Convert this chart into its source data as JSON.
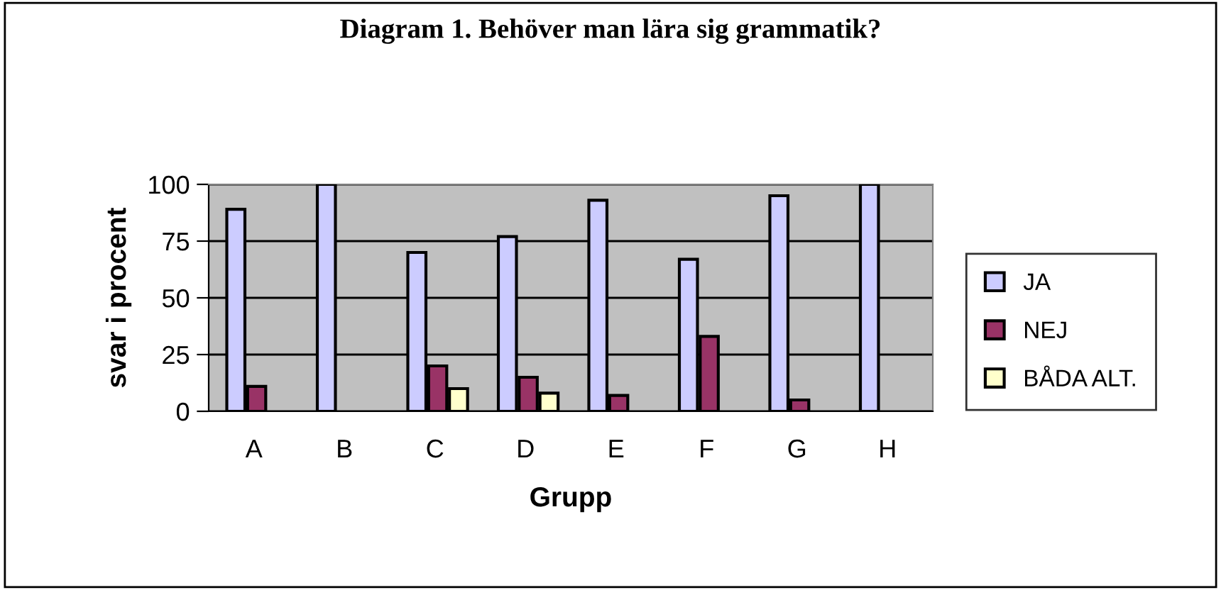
{
  "chart_data": {
    "type": "bar",
    "title": "Diagram 1. Behöver man lära sig grammatik?",
    "xlabel": "Grupp",
    "ylabel": "svar i procent",
    "categories": [
      "A",
      "B",
      "C",
      "D",
      "E",
      "F",
      "G",
      "H"
    ],
    "series": [
      {
        "name": "JA",
        "color": "#ccccff",
        "values": [
          89,
          100,
          70,
          77,
          93,
          67,
          95,
          100
        ]
      },
      {
        "name": "NEJ",
        "color": "#993366",
        "values": [
          11,
          null,
          20,
          15,
          7,
          33,
          5,
          null
        ]
      },
      {
        "name": "BÅDA ALT.",
        "color": "#ffffcc",
        "values": [
          null,
          null,
          10,
          8,
          null,
          null,
          null,
          null
        ]
      }
    ],
    "ylim": [
      0,
      100
    ],
    "yticks": [
      0,
      25,
      50,
      75,
      100
    ],
    "grid": "y",
    "legend": "right"
  }
}
